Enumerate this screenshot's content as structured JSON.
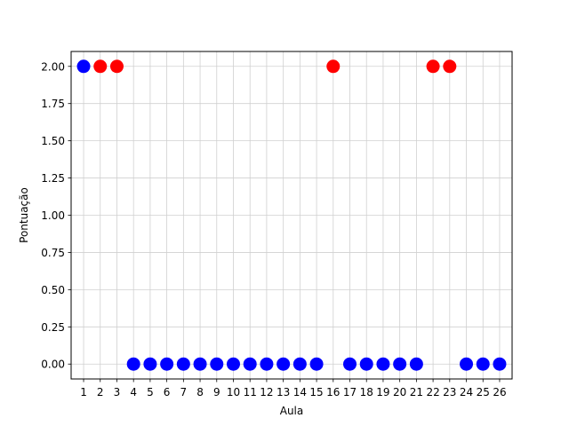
{
  "chart_data": {
    "type": "scatter",
    "title": "",
    "xlabel": "Aula",
    "ylabel": "Pontuação",
    "xlim": [
      0.25,
      26.75
    ],
    "ylim": [
      -0.1,
      2.1
    ],
    "grid": true,
    "x_ticks": [
      1,
      2,
      3,
      4,
      5,
      6,
      7,
      8,
      9,
      10,
      11,
      12,
      13,
      14,
      15,
      16,
      17,
      18,
      19,
      20,
      21,
      22,
      23,
      24,
      25,
      26
    ],
    "y_ticks": [
      "0.00",
      "0.25",
      "0.50",
      "0.75",
      "1.00",
      "1.25",
      "1.50",
      "1.75",
      "2.00"
    ],
    "colors": {
      "blue": "#0000ff",
      "red": "#ff0000",
      "grid": "#d0d0d0"
    },
    "points": [
      {
        "x": 1,
        "y": 2,
        "color": "blue"
      },
      {
        "x": 2,
        "y": 2,
        "color": "red"
      },
      {
        "x": 3,
        "y": 2,
        "color": "red"
      },
      {
        "x": 4,
        "y": 0,
        "color": "blue"
      },
      {
        "x": 5,
        "y": 0,
        "color": "blue"
      },
      {
        "x": 6,
        "y": 0,
        "color": "blue"
      },
      {
        "x": 7,
        "y": 0,
        "color": "blue"
      },
      {
        "x": 8,
        "y": 0,
        "color": "blue"
      },
      {
        "x": 9,
        "y": 0,
        "color": "blue"
      },
      {
        "x": 10,
        "y": 0,
        "color": "blue"
      },
      {
        "x": 11,
        "y": 0,
        "color": "blue"
      },
      {
        "x": 12,
        "y": 0,
        "color": "blue"
      },
      {
        "x": 13,
        "y": 0,
        "color": "blue"
      },
      {
        "x": 14,
        "y": 0,
        "color": "blue"
      },
      {
        "x": 15,
        "y": 0,
        "color": "blue"
      },
      {
        "x": 16,
        "y": 2,
        "color": "red"
      },
      {
        "x": 17,
        "y": 0,
        "color": "blue"
      },
      {
        "x": 18,
        "y": 0,
        "color": "blue"
      },
      {
        "x": 19,
        "y": 0,
        "color": "blue"
      },
      {
        "x": 20,
        "y": 0,
        "color": "blue"
      },
      {
        "x": 21,
        "y": 0,
        "color": "blue"
      },
      {
        "x": 22,
        "y": 2,
        "color": "red"
      },
      {
        "x": 23,
        "y": 2,
        "color": "red"
      },
      {
        "x": 24,
        "y": 0,
        "color": "blue"
      },
      {
        "x": 25,
        "y": 0,
        "color": "blue"
      },
      {
        "x": 26,
        "y": 0,
        "color": "blue"
      }
    ]
  }
}
